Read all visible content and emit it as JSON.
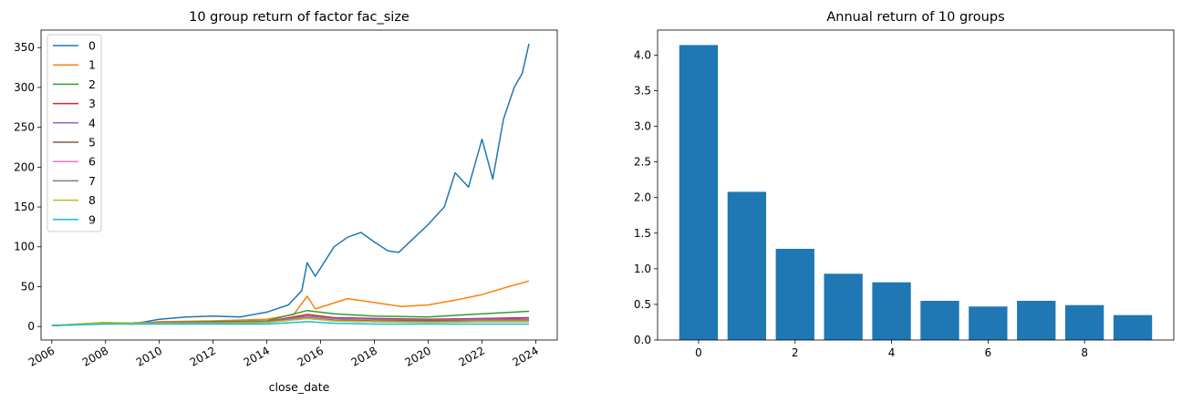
{
  "chart_data": [
    {
      "type": "line",
      "title": "10 group return of factor fac_size",
      "xlabel": "close_date",
      "ylabel": "",
      "x_ticks": [
        "2006",
        "2008",
        "2010",
        "2012",
        "2014",
        "2016",
        "2018",
        "2020",
        "2022",
        "2024"
      ],
      "y_ticks": [
        0,
        50,
        100,
        150,
        200,
        250,
        300,
        350
      ],
      "xlim": [
        2005.6,
        2024.8
      ],
      "ylim": [
        -17,
        372
      ],
      "legend": "top-left",
      "series": [
        {
          "name": "0",
          "color": "#1f77b4",
          "x": [
            2006.0,
            2007.0,
            2008.0,
            2009.0,
            2010.0,
            2011.0,
            2012.0,
            2013.0,
            2014.0,
            2014.8,
            2015.3,
            2015.5,
            2015.8,
            2016.5,
            2017.0,
            2017.5,
            2018.0,
            2018.5,
            2018.9,
            2019.5,
            2020.0,
            2020.6,
            2021.0,
            2021.5,
            2022.0,
            2022.4,
            2022.8,
            2023.2,
            2023.5,
            2023.75
          ],
          "values": [
            1,
            3,
            5,
            3,
            9,
            12,
            13,
            12,
            18,
            27,
            45,
            80,
            63,
            100,
            112,
            118,
            106,
            95,
            93,
            112,
            128,
            150,
            193,
            175,
            235,
            185,
            260,
            300,
            318,
            355
          ]
        },
        {
          "name": "1",
          "color": "#ff7f0e",
          "x": [
            2006.0,
            2008.0,
            2009.0,
            2010.0,
            2012.0,
            2014.0,
            2015.0,
            2015.5,
            2015.8,
            2017.0,
            2018.0,
            2019.0,
            2020.0,
            2021.0,
            2022.0,
            2023.0,
            2023.75
          ],
          "values": [
            1,
            5,
            3,
            6,
            7,
            9,
            15,
            38,
            22,
            35,
            30,
            25,
            27,
            33,
            40,
            50,
            57
          ]
        },
        {
          "name": "2",
          "color": "#2ca02c",
          "x": [
            2006.0,
            2008.0,
            2010.0,
            2012.0,
            2014.0,
            2015.5,
            2016.5,
            2018.0,
            2020.0,
            2022.0,
            2023.75
          ],
          "values": [
            1,
            4,
            5,
            6,
            7,
            20,
            16,
            13,
            12,
            16,
            19
          ]
        },
        {
          "name": "3",
          "color": "#d62728",
          "x": [
            2006.0,
            2008.0,
            2010.0,
            2012.0,
            2014.0,
            2015.5,
            2016.5,
            2018.0,
            2020.0,
            2022.0,
            2023.75
          ],
          "values": [
            1,
            4,
            5,
            5,
            6,
            15,
            11,
            10,
            9,
            10,
            11
          ]
        },
        {
          "name": "4",
          "color": "#9467bd",
          "x": [
            2006.0,
            2008.0,
            2010.0,
            2012.0,
            2014.0,
            2015.5,
            2016.5,
            2018.0,
            2020.0,
            2022.0,
            2023.75
          ],
          "values": [
            1,
            4,
            5,
            5,
            6,
            13,
            10,
            9,
            8,
            9,
            9
          ]
        },
        {
          "name": "5",
          "color": "#8c564b",
          "x": [
            2006.0,
            2008.0,
            2010.0,
            2012.0,
            2014.0,
            2015.5,
            2016.5,
            2018.0,
            2020.0,
            2022.0,
            2023.75
          ],
          "values": [
            1,
            4,
            4,
            4,
            5,
            11,
            8,
            7,
            7,
            7,
            7
          ]
        },
        {
          "name": "6",
          "color": "#e377c2",
          "x": [
            2006.0,
            2008.0,
            2010.0,
            2012.0,
            2014.0,
            2015.5,
            2016.5,
            2018.0,
            2020.0,
            2022.0,
            2023.75
          ],
          "values": [
            1,
            4,
            4,
            4,
            5,
            10,
            7,
            6,
            6,
            6,
            6
          ]
        },
        {
          "name": "7",
          "color": "#7f7f7f",
          "x": [
            2006.0,
            2008.0,
            2010.0,
            2012.0,
            2014.0,
            2015.5,
            2016.5,
            2018.0,
            2020.0,
            2022.0,
            2023.75
          ],
          "values": [
            1,
            4,
            4,
            4,
            5,
            11,
            7,
            6,
            6,
            7,
            7
          ]
        },
        {
          "name": "8",
          "color": "#bcbd22",
          "x": [
            2006.0,
            2008.0,
            2010.0,
            2012.0,
            2014.0,
            2015.5,
            2016.5,
            2018.0,
            2020.0,
            2022.0,
            2023.75
          ],
          "values": [
            1,
            5,
            4,
            4,
            5,
            10,
            7,
            6,
            5,
            6,
            6
          ]
        },
        {
          "name": "9",
          "color": "#17becf",
          "x": [
            2006.0,
            2008.0,
            2010.0,
            2012.0,
            2014.0,
            2015.5,
            2016.5,
            2018.0,
            2020.0,
            2022.0,
            2023.75
          ],
          "values": [
            1,
            3,
            3,
            3,
            3,
            6,
            4,
            3,
            3,
            3,
            3
          ]
        }
      ]
    },
    {
      "type": "bar",
      "title": "Annual return of 10 groups",
      "xlabel": "",
      "ylabel": "",
      "categories": [
        0,
        1,
        2,
        3,
        4,
        5,
        6,
        7,
        8,
        9
      ],
      "values": [
        4.14,
        2.08,
        1.28,
        0.93,
        0.81,
        0.55,
        0.47,
        0.55,
        0.49,
        0.35
      ],
      "color": "#1f77b4",
      "x_ticks": [
        "0",
        "2",
        "4",
        "6",
        "8"
      ],
      "y_ticks": [
        "0.0",
        "0.5",
        "1.0",
        "1.5",
        "2.0",
        "2.5",
        "3.0",
        "3.5",
        "4.0"
      ],
      "xlim": [
        -0.85,
        9.85
      ],
      "ylim": [
        0,
        4.35
      ]
    }
  ]
}
